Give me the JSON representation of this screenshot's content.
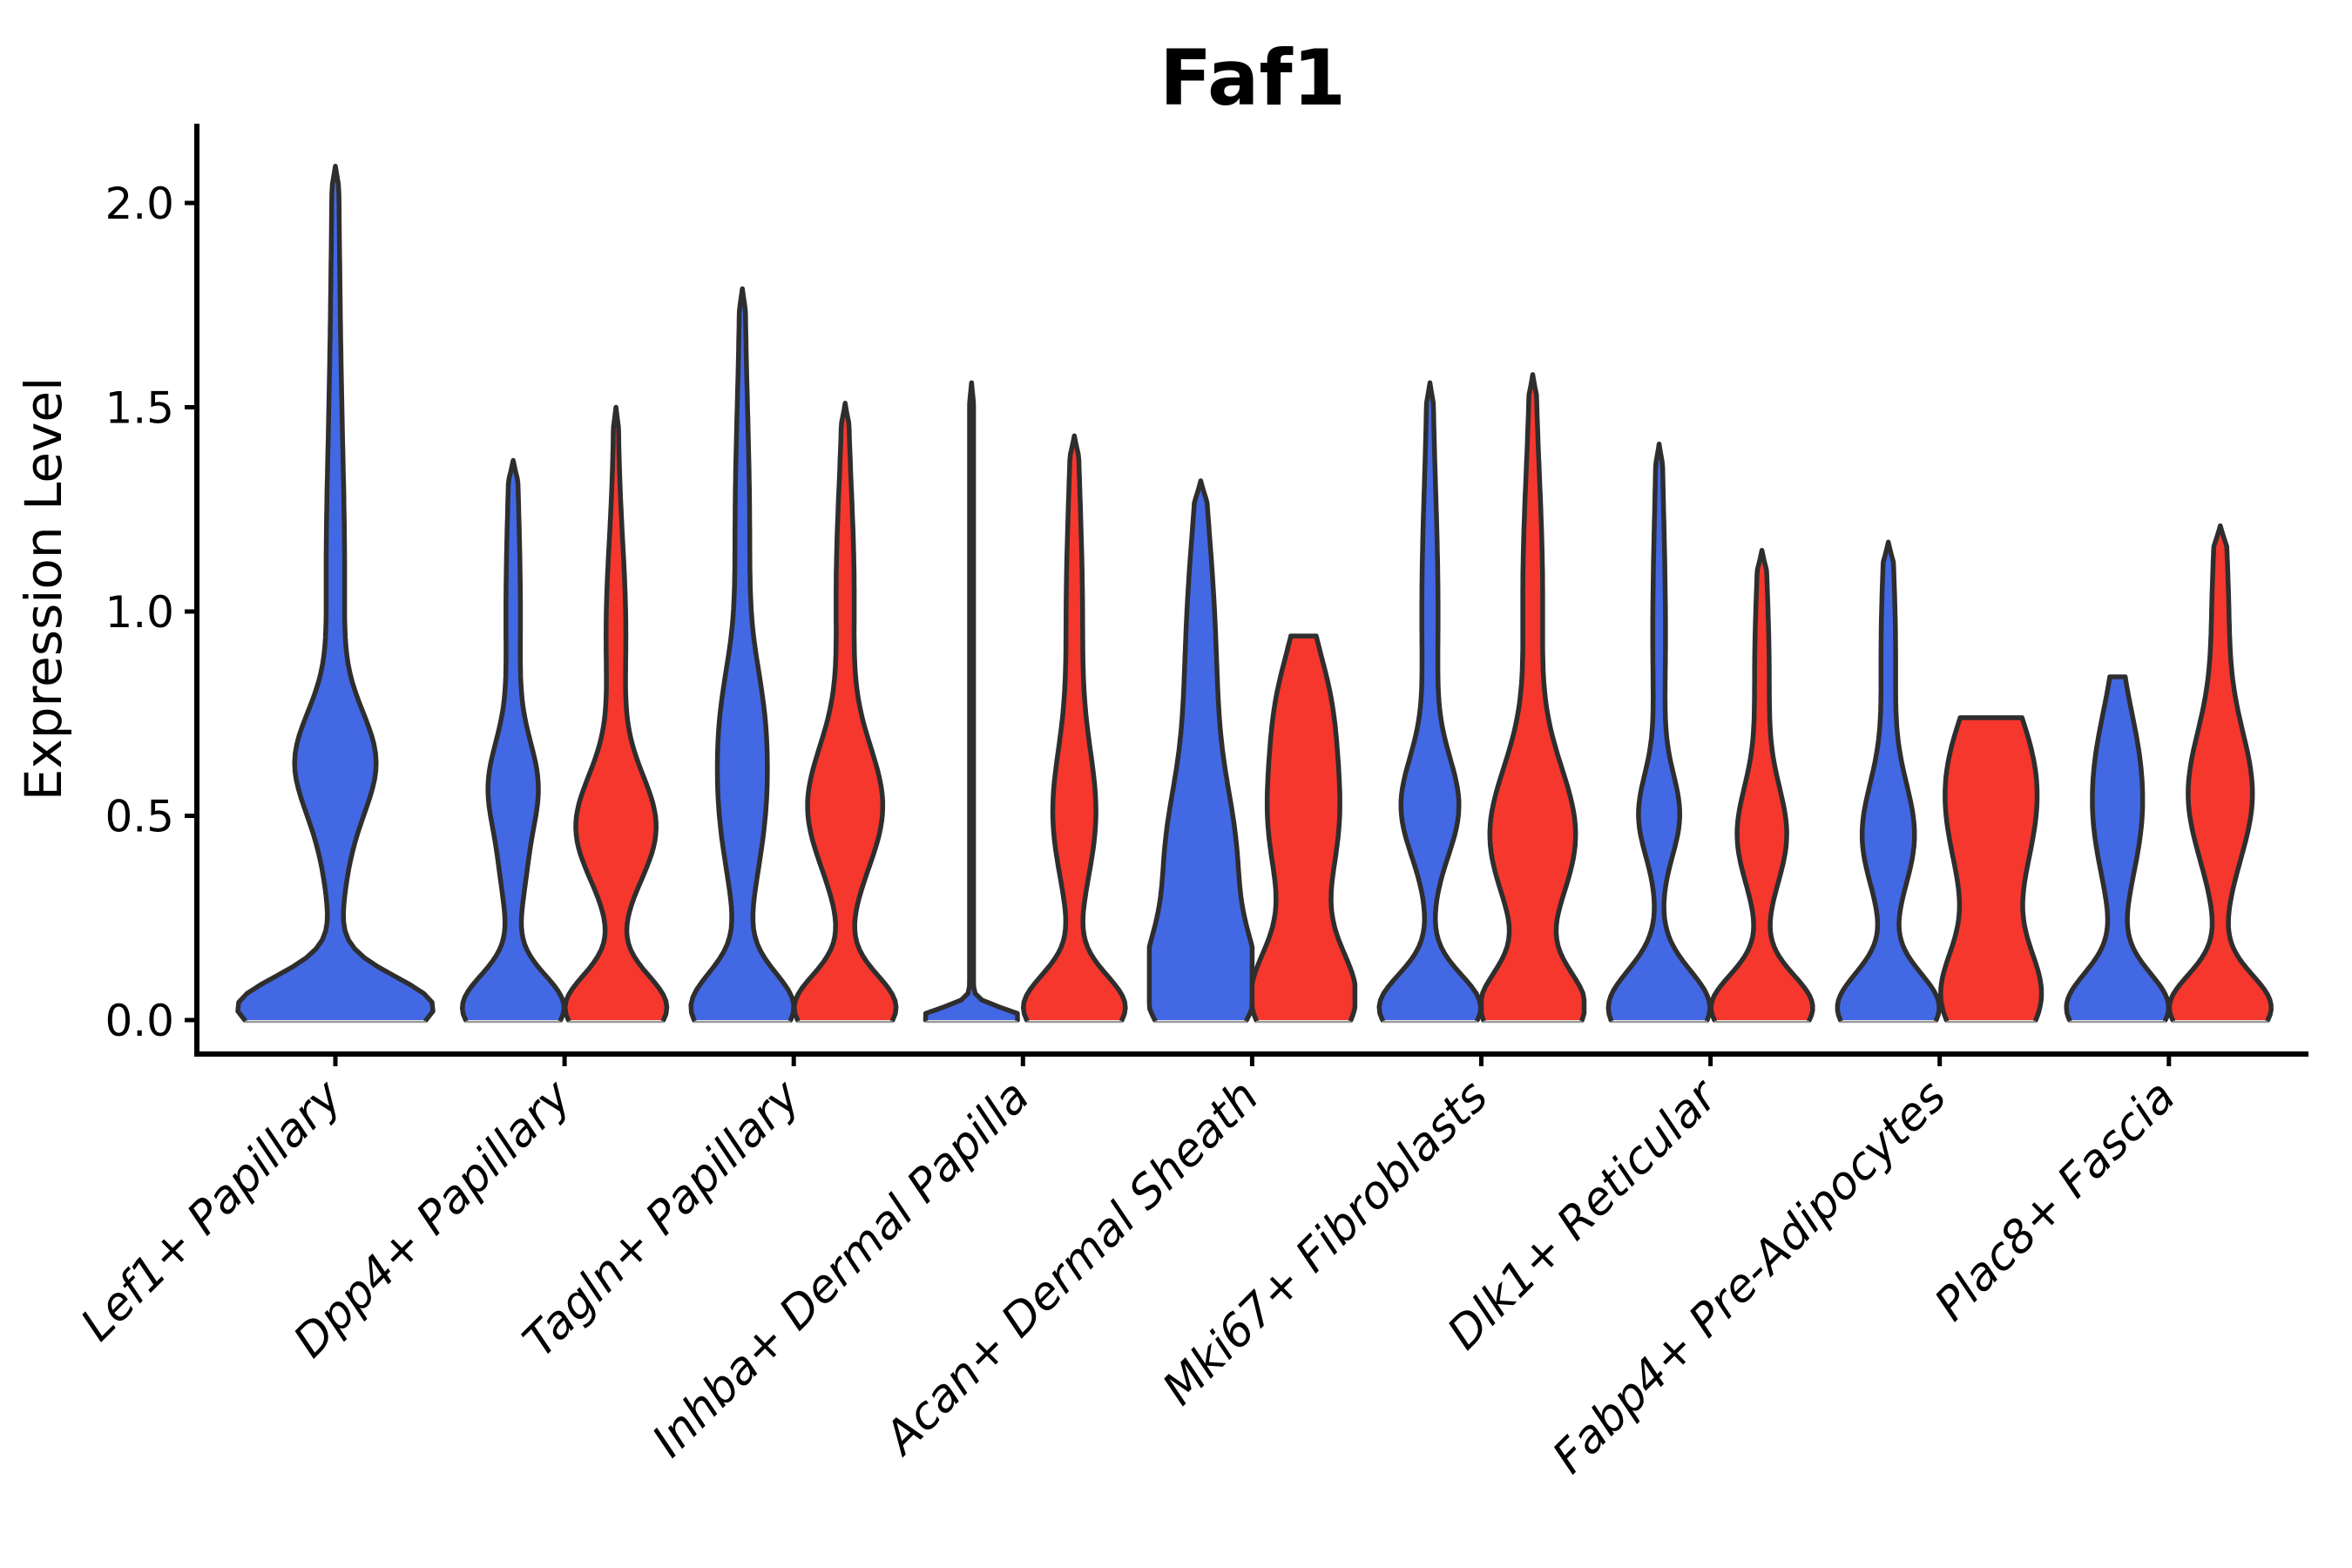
{
  "chart_data": {
    "type": "violin",
    "title": "Faf1",
    "ylabel": "Expression Level",
    "xlabel": "",
    "grid": false,
    "legend": "none",
    "yticks": [
      {
        "label": "0.0",
        "v": 0.0
      },
      {
        "label": "0.5",
        "v": 0.5
      },
      {
        "label": "1.0",
        "v": 1.0
      },
      {
        "label": "1.5",
        "v": 1.5
      },
      {
        "label": "2.0",
        "v": 2.0
      }
    ],
    "ylim": [
      -0.13,
      2.19
    ],
    "categories": [
      "Lef1+ Papillary",
      "Dpp4+ Papillary",
      "Tagln+ Papillary",
      "Inhba+ Dermal Papilla",
      "Acan+ Dermal Sheath",
      "Mki67+ Fibroblasts",
      "Dlk1+ Reticular",
      "Fabp4+ Pre-Adipocytes",
      "Plac8+ Fascia"
    ],
    "colors": {
      "blue": "#4368E4",
      "red": "#F5372D",
      "outline": "#2E2E2E",
      "axis": "#000000",
      "baseline": "#999999"
    },
    "layout": {
      "y0": 1171,
      "unit": 469,
      "x0": 385,
      "dx": 263.1,
      "gap": 59,
      "spineX": 226,
      "topY": 142,
      "bottomY": 1210,
      "rightX": 2650,
      "tick_len": 14,
      "floor": 2.3,
      "tip": 0.05
    },
    "violins": [
      {
        "cat": 0,
        "color": "blue",
        "offset": 0,
        "cap": 112,
        "max": 2.09,
        "flat": false,
        "comps": [
          {
            "mu": 0.03,
            "s": 0.075,
            "a": 110
          },
          {
            "mu": 0.45,
            "s": 0.16,
            "a": 11
          },
          {
            "mu": 0.64,
            "s": 0.12,
            "a": 36
          },
          {
            "mu": 1.05,
            "s": 0.3,
            "a": 7
          },
          {
            "mu": 1.6,
            "s": 0.4,
            "a": 3
          }
        ]
      },
      {
        "cat": 1,
        "color": "blue",
        "offset": -1,
        "cap": 59,
        "max": 1.37,
        "flat": false,
        "comps": [
          {
            "mu": 0.03,
            "s": 0.08,
            "a": 56
          },
          {
            "mu": 0.35,
            "s": 0.1,
            "a": 9
          },
          {
            "mu": 0.57,
            "s": 0.11,
            "a": 24
          },
          {
            "mu": 1.0,
            "s": 0.28,
            "a": 6
          }
        ]
      },
      {
        "cat": 1,
        "color": "red",
        "offset": 1,
        "cap": 59,
        "max": 1.5,
        "flat": false,
        "comps": [
          {
            "mu": 0.03,
            "s": 0.08,
            "a": 56
          },
          {
            "mu": 0.47,
            "s": 0.13,
            "a": 43
          },
          {
            "mu": 0.95,
            "s": 0.22,
            "a": 9
          }
        ]
      },
      {
        "cat": 2,
        "color": "blue",
        "offset": -1,
        "cap": 59,
        "max": 1.79,
        "flat": false,
        "comps": [
          {
            "mu": 0.03,
            "s": 0.085,
            "a": 56
          },
          {
            "mu": 0.55,
            "s": 0.2,
            "a": 24
          },
          {
            "mu": 0.78,
            "s": 0.12,
            "a": 7
          },
          {
            "mu": 1.2,
            "s": 0.3,
            "a": 6
          }
        ]
      },
      {
        "cat": 2,
        "color": "red",
        "offset": 1,
        "cap": 59,
        "max": 1.51,
        "flat": false,
        "comps": [
          {
            "mu": 0.03,
            "s": 0.08,
            "a": 56
          },
          {
            "mu": 0.52,
            "s": 0.15,
            "a": 40
          },
          {
            "mu": 1.05,
            "s": 0.25,
            "a": 8
          }
        ]
      },
      {
        "cat": 3,
        "color": "blue",
        "offset": -1,
        "cap": 59,
        "max": 1.56,
        "flat": false,
        "comps": [
          {
            "mu": 0.008,
            "s": 0.022,
            "a": 54
          }
        ]
      },
      {
        "cat": 3,
        "color": "red",
        "offset": 1,
        "cap": 59,
        "max": 1.43,
        "flat": false,
        "comps": [
          {
            "mu": 0.03,
            "s": 0.08,
            "a": 56
          },
          {
            "mu": 0.5,
            "s": 0.16,
            "a": 21
          },
          {
            "mu": 1.0,
            "s": 0.28,
            "a": 7
          }
        ]
      },
      {
        "cat": 4,
        "color": "blue",
        "offset": -1,
        "cap": 59,
        "max": 1.32,
        "flat": false,
        "comps": [
          {
            "mu": 0.07,
            "s": 0.13,
            "a": 54
          },
          {
            "mu": 0.38,
            "s": 0.18,
            "a": 34
          },
          {
            "mu": 0.78,
            "s": 0.24,
            "a": 14
          },
          {
            "mu": 1.1,
            "s": 0.18,
            "a": 5
          }
        ]
      },
      {
        "cat": 4,
        "color": "red",
        "offset": 1,
        "cap": 59,
        "max": 0.94,
        "flat": true,
        "comps": [
          {
            "mu": 0.05,
            "s": 0.12,
            "a": 55
          },
          {
            "mu": 0.5,
            "s": 0.2,
            "a": 38
          },
          {
            "mu": 0.8,
            "s": 0.13,
            "a": 16
          }
        ]
      },
      {
        "cat": 5,
        "color": "blue",
        "offset": -1,
        "cap": 59,
        "max": 1.56,
        "flat": false,
        "comps": [
          {
            "mu": 0.03,
            "s": 0.08,
            "a": 56
          },
          {
            "mu": 0.52,
            "s": 0.12,
            "a": 29
          },
          {
            "mu": 1.0,
            "s": 0.3,
            "a": 7
          }
        ]
      },
      {
        "cat": 5,
        "color": "red",
        "offset": 1,
        "cap": 59,
        "max": 1.58,
        "flat": false,
        "comps": [
          {
            "mu": 0.03,
            "s": 0.09,
            "a": 56
          },
          {
            "mu": 0.45,
            "s": 0.17,
            "a": 46
          },
          {
            "mu": 1.05,
            "s": 0.28,
            "a": 9
          }
        ]
      },
      {
        "cat": 6,
        "color": "blue",
        "offset": -1,
        "cap": 59,
        "max": 1.41,
        "flat": false,
        "comps": [
          {
            "mu": 0.03,
            "s": 0.09,
            "a": 56
          },
          {
            "mu": 0.5,
            "s": 0.1,
            "a": 20
          },
          {
            "mu": 0.95,
            "s": 0.28,
            "a": 5
          }
        ]
      },
      {
        "cat": 6,
        "color": "red",
        "offset": 1,
        "cap": 59,
        "max": 1.15,
        "flat": false,
        "comps": [
          {
            "mu": 0.03,
            "s": 0.08,
            "a": 56
          },
          {
            "mu": 0.45,
            "s": 0.12,
            "a": 25
          },
          {
            "mu": 0.85,
            "s": 0.22,
            "a": 6
          }
        ]
      },
      {
        "cat": 7,
        "color": "blue",
        "offset": -1,
        "cap": 59,
        "max": 1.17,
        "flat": false,
        "comps": [
          {
            "mu": 0.03,
            "s": 0.085,
            "a": 56
          },
          {
            "mu": 0.45,
            "s": 0.13,
            "a": 27
          },
          {
            "mu": 0.9,
            "s": 0.22,
            "a": 6
          }
        ]
      },
      {
        "cat": 7,
        "color": "red",
        "offset": 1,
        "cap": 59,
        "max": 0.74,
        "flat": true,
        "comps": [
          {
            "mu": 0.05,
            "s": 0.12,
            "a": 50
          },
          {
            "mu": 0.5,
            "s": 0.22,
            "a": 42
          },
          {
            "mu": 0.65,
            "s": 0.15,
            "a": 12
          }
        ]
      },
      {
        "cat": 8,
        "color": "blue",
        "offset": -1,
        "cap": 59,
        "max": 0.84,
        "flat": true,
        "comps": [
          {
            "mu": 0.03,
            "s": 0.085,
            "a": 56
          },
          {
            "mu": 0.5,
            "s": 0.16,
            "a": 24
          },
          {
            "mu": 0.7,
            "s": 0.12,
            "a": 8
          }
        ]
      },
      {
        "cat": 8,
        "color": "red",
        "offset": 1,
        "cap": 59,
        "max": 1.21,
        "flat": false,
        "comps": [
          {
            "mu": 0.03,
            "s": 0.08,
            "a": 56
          },
          {
            "mu": 0.55,
            "s": 0.16,
            "a": 34
          },
          {
            "mu": 1.0,
            "s": 0.2,
            "a": 7
          }
        ]
      }
    ]
  }
}
